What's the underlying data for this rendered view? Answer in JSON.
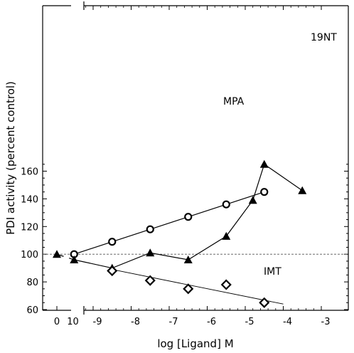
{
  "chart_data": {
    "type": "line",
    "title": "",
    "xlabel": "log [Ligand] M",
    "ylabel": "PDI activity  (percent control)",
    "xlim": [
      -10.2,
      -2.9
    ],
    "ylim": [
      60,
      168
    ],
    "x_ticks": [
      {
        "value": -9,
        "label": "-9"
      },
      {
        "value": -8,
        "label": "-8"
      },
      {
        "value": -7,
        "label": "-7"
      },
      {
        "value": -6,
        "label": "-6"
      },
      {
        "value": -5,
        "label": "-5"
      },
      {
        "value": -4,
        "label": "-4"
      },
      {
        "value": -3,
        "label": "-3"
      }
    ],
    "x_break_ticks": [
      {
        "value": "zero",
        "label": "0"
      },
      {
        "value": -10,
        "label": "10"
      }
    ],
    "y_ticks": [
      60,
      80,
      100,
      120,
      140,
      160
    ],
    "zero_point": {
      "x_label": "0",
      "y": 100
    },
    "control_line": {
      "y": 100
    },
    "series": [
      {
        "name": "MPA",
        "marker": "circle",
        "points": [
          {
            "x": -9.5,
            "y": 100
          },
          {
            "x": -8.5,
            "y": 109
          },
          {
            "x": -7.5,
            "y": 118
          },
          {
            "x": -6.5,
            "y": 127
          },
          {
            "x": -5.5,
            "y": 136
          },
          {
            "x": -4.5,
            "y": 145
          }
        ]
      },
      {
        "name": "19NT",
        "marker": "triangle",
        "points": [
          {
            "x": -9.5,
            "y": 96
          },
          {
            "x": -8.5,
            "y": 90
          },
          {
            "x": -7.5,
            "y": 101
          },
          {
            "x": -6.5,
            "y": 96
          },
          {
            "x": -5.5,
            "y": 113
          },
          {
            "x": -4.8,
            "y": 139
          },
          {
            "x": -4.5,
            "y": 165
          },
          {
            "x": -3.5,
            "y": 146
          }
        ]
      },
      {
        "name": "IMT",
        "marker": "diamond",
        "points": [
          {
            "x": -8.5,
            "y": 88
          },
          {
            "x": -7.5,
            "y": 81
          },
          {
            "x": -6.5,
            "y": 75
          },
          {
            "x": -5.5,
            "y": 78
          },
          {
            "x": -4.5,
            "y": 65
          }
        ],
        "fit_line": {
          "from": {
            "x": -8.5,
            "y": 89
          },
          "to": {
            "x": -4.0,
            "y": 64
          }
        }
      }
    ]
  }
}
